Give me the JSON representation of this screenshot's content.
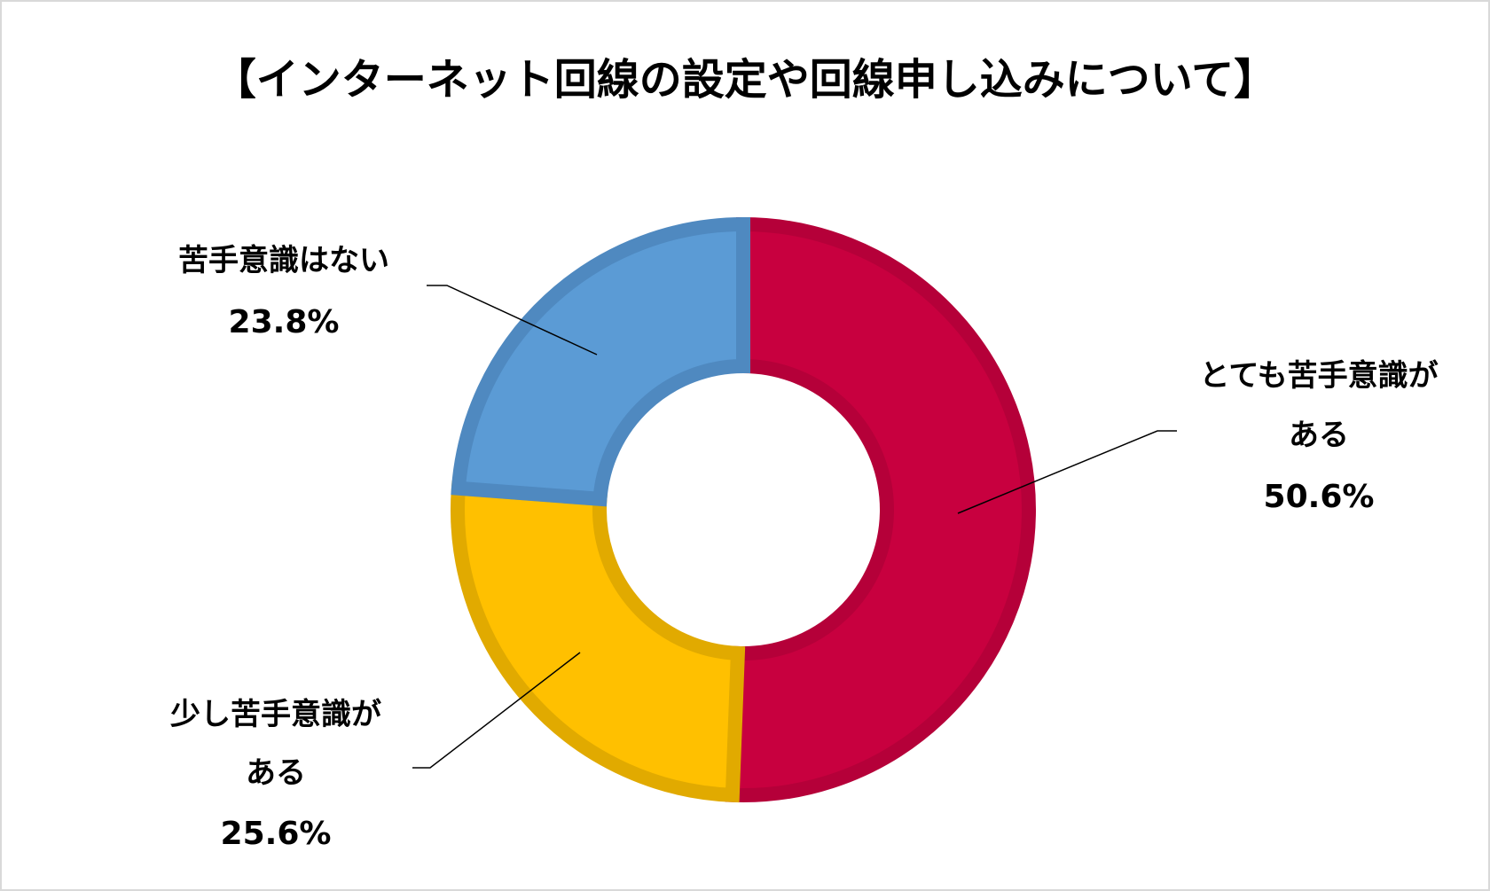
{
  "chart_data": {
    "type": "pie",
    "variant": "donut",
    "title": "【インターネット回線の設定や回線申し込みについて】",
    "start_angle_deg": 0,
    "direction": "clockwise",
    "legend": "none",
    "slices": [
      {
        "id": "very",
        "label_lines": [
          "とても苦手意識が",
          "ある"
        ],
        "value": 50.6,
        "value_label": "50.6%",
        "color": "#C8003F",
        "border_color": "#B50039"
      },
      {
        "id": "little",
        "label_lines": [
          "少し苦手意識が",
          "ある"
        ],
        "value": 25.6,
        "value_label": "25.6%",
        "color": "#FFC000",
        "border_color": "#E1AA00"
      },
      {
        "id": "none",
        "label_lines": [
          "苦手意識はない"
        ],
        "value": 23.8,
        "value_label": "23.8%",
        "color": "#5B9BD5",
        "border_color": "#4F89C0"
      }
    ]
  }
}
